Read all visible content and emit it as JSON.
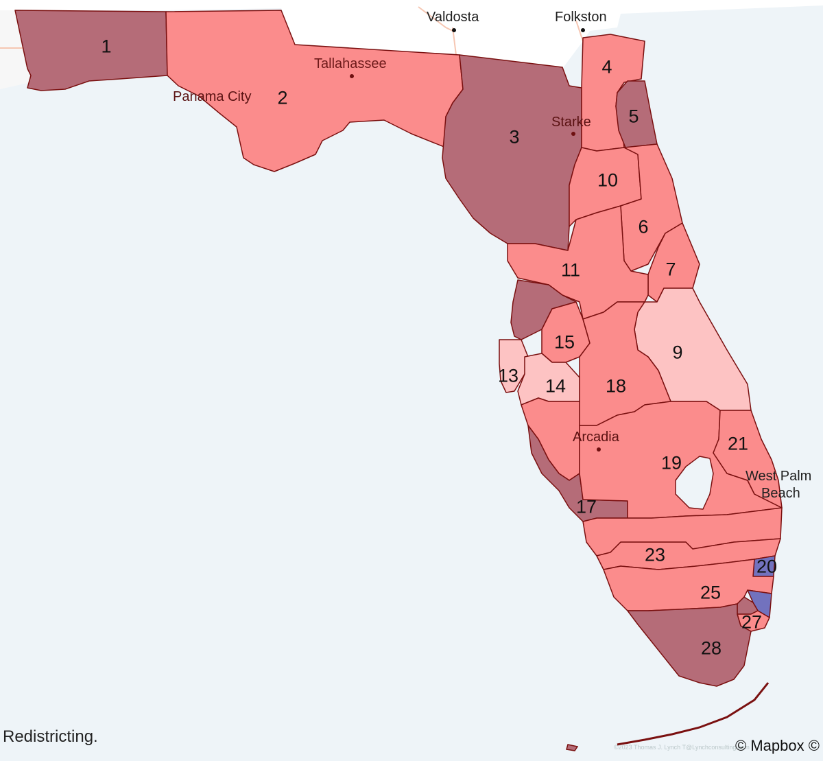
{
  "caption": "Redistricting.",
  "attribution": "© Mapbox ©",
  "credit": "©2023 Thomas J. Lynch T@Lynchconsulting.com",
  "colors": {
    "water": "#eef4f8",
    "land_outside": "#ffffff",
    "safe_r": "#b56c78",
    "lean_r": "#fb8c8c",
    "tossup_r": "#fdc3c3",
    "dem": "#7272be",
    "border": "#7a1010"
  },
  "cities": [
    {
      "name": "Valdosta"
    },
    {
      "name": "Folkston"
    },
    {
      "name": "Tallahassee"
    },
    {
      "name": "Panama City"
    },
    {
      "name": "Starke"
    },
    {
      "name": "Arcadia"
    },
    {
      "name": "West Palm"
    },
    {
      "name": "Beach"
    }
  ],
  "districts": [
    {
      "id": "1",
      "category": "safe_r"
    },
    {
      "id": "2",
      "category": "lean_r"
    },
    {
      "id": "3",
      "category": "safe_r"
    },
    {
      "id": "4",
      "category": "lean_r"
    },
    {
      "id": "5",
      "category": "safe_r"
    },
    {
      "id": "6",
      "category": "lean_r"
    },
    {
      "id": "7",
      "category": "lean_r"
    },
    {
      "id": "9",
      "category": "tossup_r"
    },
    {
      "id": "10",
      "category": "lean_r"
    },
    {
      "id": "11",
      "category": "lean_r"
    },
    {
      "id": "13",
      "category": "tossup_r"
    },
    {
      "id": "14",
      "category": "tossup_r"
    },
    {
      "id": "15",
      "category": "lean_r"
    },
    {
      "id": "17",
      "category": "lean_r"
    },
    {
      "id": "18",
      "category": "lean_r"
    },
    {
      "id": "19",
      "category": "lean_r"
    },
    {
      "id": "20",
      "category": "dem"
    },
    {
      "id": "21",
      "category": "lean_r"
    },
    {
      "id": "23",
      "category": "lean_r"
    },
    {
      "id": "25",
      "category": "lean_r"
    },
    {
      "id": "27",
      "category": "lean_r"
    },
    {
      "id": "28",
      "category": "safe_r"
    }
  ]
}
